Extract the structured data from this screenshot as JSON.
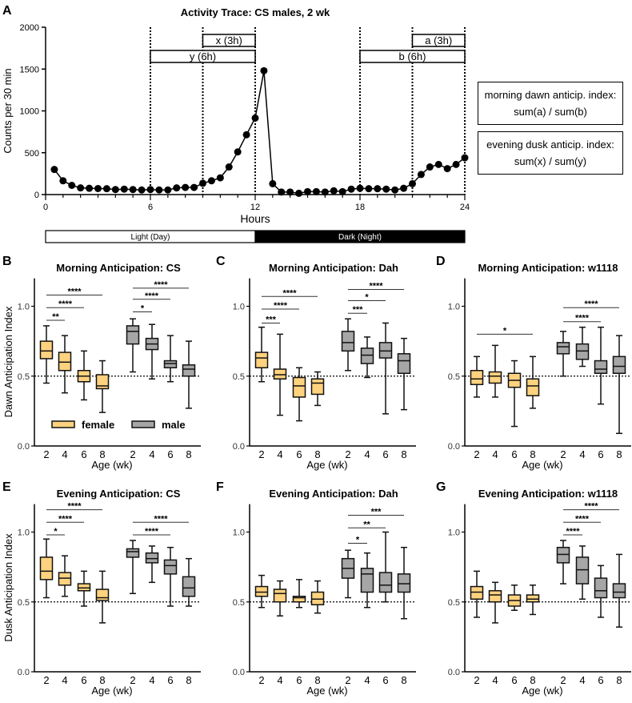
{
  "colors": {
    "female": "#FFD27F",
    "male": "#A6A6A6",
    "line": "#000000",
    "dark_phase": "#000000",
    "light_phase": "#FFFFFF"
  },
  "index_boxes": [
    {
      "line1": "morning dawn anticip. index:",
      "line2": "sum(a) / sum(b)"
    },
    {
      "line1": "evening dusk anticip. index:",
      "line2": "sum(x) / sum(y)"
    }
  ],
  "chart_data": [
    {
      "panel": "A",
      "type": "line",
      "title": "Activity Trace: CS males, 2 wk",
      "xlabel": "Hours",
      "ylabel": "Counts per 30 min",
      "xlim": [
        0,
        24
      ],
      "ylim": [
        0,
        2000
      ],
      "xticks": [
        0,
        6,
        12,
        18,
        24
      ],
      "yticks": [
        0,
        500,
        1000,
        1500,
        2000
      ],
      "x": [
        0.5,
        1,
        1.5,
        2,
        2.5,
        3,
        3.5,
        4,
        4.5,
        5,
        5.5,
        6,
        6.5,
        7,
        7.5,
        8,
        8.5,
        9,
        9.5,
        10,
        10.5,
        11,
        11.5,
        12,
        12.5,
        13,
        13.5,
        14,
        14.5,
        15,
        15.5,
        16,
        16.5,
        17,
        17.5,
        18,
        18.5,
        19,
        19.5,
        20,
        20.5,
        21,
        21.5,
        22,
        22.5,
        23,
        23.5,
        24
      ],
      "y": [
        300,
        165,
        110,
        80,
        75,
        72,
        70,
        60,
        65,
        60,
        55,
        60,
        55,
        55,
        80,
        85,
        85,
        135,
        165,
        200,
        330,
        510,
        715,
        915,
        1480,
        130,
        30,
        30,
        15,
        35,
        35,
        30,
        45,
        35,
        65,
        75,
        70,
        70,
        65,
        55,
        75,
        130,
        240,
        330,
        360,
        310,
        360,
        440
      ],
      "dotted_lines": [
        6,
        9,
        12,
        18,
        21,
        24
      ],
      "intervals": [
        {
          "label": "x (3h)",
          "start": 9,
          "end": 12,
          "row": 1
        },
        {
          "label": "y (6h)",
          "start": 6,
          "end": 12,
          "row": 2
        },
        {
          "label": "a (3h)",
          "start": 21,
          "end": 24,
          "row": 1
        },
        {
          "label": "b (6h)",
          "start": 18,
          "end": 24,
          "row": 2
        }
      ],
      "phase_bar": [
        {
          "label": "Light (Day)",
          "start": 0,
          "end": 12,
          "phase": "light"
        },
        {
          "label": "Dark (Night)",
          "start": 12,
          "end": 24,
          "phase": "dark"
        }
      ]
    },
    {
      "panel": "B",
      "type": "box",
      "title": "Morning Anticipation: CS",
      "ylabel": "Dawn Anticipation Index",
      "xlabel": "Age (wk)",
      "ylim": [
        0,
        1.2
      ],
      "yticks": [
        "0.0",
        "0.5",
        "1.0"
      ],
      "reference_line": 0.5,
      "categories": [
        "2",
        "4",
        "6",
        "8"
      ],
      "legend": [
        {
          "name": "female"
        },
        {
          "name": "male"
        }
      ],
      "groups": [
        {
          "name": "female",
          "boxes": [
            [
              0.45,
              0.625,
              0.68,
              0.75,
              0.86
            ],
            [
              0.38,
              0.54,
              0.6,
              0.67,
              0.79
            ],
            [
              0.33,
              0.46,
              0.5,
              0.54,
              0.68
            ],
            [
              0.24,
              0.41,
              0.43,
              0.51,
              0.61
            ]
          ]
        },
        {
          "name": "male",
          "boxes": [
            [
              0.53,
              0.73,
              0.82,
              0.86,
              0.91
            ],
            [
              0.48,
              0.69,
              0.73,
              0.77,
              0.87
            ],
            [
              0.46,
              0.56,
              0.59,
              0.61,
              0.79
            ],
            [
              0.27,
              0.5,
              0.55,
              0.58,
              0.75
            ]
          ]
        }
      ],
      "significance": [
        {
          "group": 0,
          "from": 0,
          "to": 1,
          "label": "**",
          "y": 0.9
        },
        {
          "group": 0,
          "from": 0,
          "to": 2,
          "label": "****",
          "y": 0.99
        },
        {
          "group": 0,
          "from": 0,
          "to": 3,
          "label": "****",
          "y": 1.08
        },
        {
          "group": 1,
          "from": 0,
          "to": 1,
          "label": "*",
          "y": 0.96
        },
        {
          "group": 1,
          "from": 0,
          "to": 2,
          "label": "****",
          "y": 1.05
        },
        {
          "group": 1,
          "from": 0,
          "to": 3,
          "label": "****",
          "y": 1.13
        }
      ]
    },
    {
      "panel": "C",
      "type": "box",
      "title": "Morning Anticipation: Dah",
      "ylabel": "",
      "xlabel": "Age (wk)",
      "ylim": [
        0,
        1.2
      ],
      "yticks": [
        "0.0",
        "0.5",
        "1.0"
      ],
      "reference_line": 0.5,
      "categories": [
        "2",
        "4",
        "6",
        "8"
      ],
      "groups": [
        {
          "name": "female",
          "boxes": [
            [
              0.46,
              0.56,
              0.63,
              0.67,
              0.85
            ],
            [
              0.22,
              0.48,
              0.51,
              0.55,
              0.8
            ],
            [
              0.18,
              0.35,
              0.43,
              0.49,
              0.56
            ],
            [
              0.29,
              0.37,
              0.45,
              0.48,
              0.53
            ]
          ]
        },
        {
          "name": "male",
          "boxes": [
            [
              0.54,
              0.68,
              0.74,
              0.82,
              0.91
            ],
            [
              0.49,
              0.59,
              0.65,
              0.7,
              0.78
            ],
            [
              0.23,
              0.63,
              0.68,
              0.74,
              0.88
            ],
            [
              0.26,
              0.52,
              0.61,
              0.66,
              0.77
            ]
          ]
        }
      ],
      "significance": [
        {
          "group": 0,
          "from": 0,
          "to": 1,
          "label": "***",
          "y": 0.88
        },
        {
          "group": 0,
          "from": 0,
          "to": 2,
          "label": "****",
          "y": 0.98
        },
        {
          "group": 0,
          "from": 0,
          "to": 3,
          "label": "****",
          "y": 1.07
        },
        {
          "group": 1,
          "from": 0,
          "to": 1,
          "label": "***",
          "y": 0.95
        },
        {
          "group": 1,
          "from": 0,
          "to": 2,
          "label": "*",
          "y": 1.04
        },
        {
          "group": 1,
          "from": 0,
          "to": 3,
          "label": "****",
          "y": 1.12
        }
      ]
    },
    {
      "panel": "D",
      "type": "box",
      "title": "Morning Anticipation: w1118",
      "ylabel": "",
      "xlabel": "Age (wk)",
      "ylim": [
        0,
        1.2
      ],
      "yticks": [
        "0.0",
        "0.5",
        "1.0"
      ],
      "reference_line": 0.5,
      "categories": [
        "2",
        "4",
        "6",
        "8"
      ],
      "groups": [
        {
          "name": "female",
          "boxes": [
            [
              0.35,
              0.44,
              0.48,
              0.54,
              0.64
            ],
            [
              0.35,
              0.45,
              0.5,
              0.53,
              0.72
            ],
            [
              0.14,
              0.42,
              0.47,
              0.52,
              0.61
            ],
            [
              0.27,
              0.36,
              0.43,
              0.48,
              0.64
            ]
          ]
        },
        {
          "name": "male",
          "boxes": [
            [
              0.5,
              0.66,
              0.71,
              0.74,
              0.82
            ],
            [
              0.57,
              0.62,
              0.68,
              0.73,
              0.85
            ],
            [
              0.3,
              0.52,
              0.55,
              0.61,
              0.85
            ],
            [
              0.09,
              0.52,
              0.57,
              0.64,
              0.79
            ]
          ]
        }
      ],
      "significance": [
        {
          "group": 0,
          "from": 0,
          "to": 3,
          "label": "*",
          "y": 0.8
        },
        {
          "group": 1,
          "from": 0,
          "to": 2,
          "label": "****",
          "y": 0.89
        },
        {
          "group": 1,
          "from": 0,
          "to": 3,
          "label": "****",
          "y": 0.99
        }
      ]
    },
    {
      "panel": "E",
      "type": "box",
      "title": "Evening Anticipation: CS",
      "ylabel": "Dusk Anticipation Index",
      "xlabel": "Age (wk)",
      "ylim": [
        0,
        1.2
      ],
      "yticks": [
        "0.0",
        "0.5",
        "1.0"
      ],
      "reference_line": 0.5,
      "categories": [
        "2",
        "4",
        "6",
        "8"
      ],
      "groups": [
        {
          "name": "female",
          "boxes": [
            [
              0.53,
              0.66,
              0.72,
              0.82,
              0.95
            ],
            [
              0.54,
              0.62,
              0.67,
              0.71,
              0.83
            ],
            [
              0.47,
              0.58,
              0.6,
              0.63,
              0.72
            ],
            [
              0.35,
              0.51,
              0.53,
              0.59,
              0.72
            ]
          ]
        },
        {
          "name": "male",
          "boxes": [
            [
              0.56,
              0.82,
              0.86,
              0.88,
              0.94
            ],
            [
              0.64,
              0.78,
              0.81,
              0.85,
              0.9
            ],
            [
              0.47,
              0.7,
              0.76,
              0.8,
              0.89
            ],
            [
              0.47,
              0.54,
              0.6,
              0.68,
              0.81
            ]
          ]
        }
      ],
      "significance": [
        {
          "group": 0,
          "from": 0,
          "to": 1,
          "label": "*",
          "y": 0.98
        },
        {
          "group": 0,
          "from": 0,
          "to": 2,
          "label": "****",
          "y": 1.07
        },
        {
          "group": 0,
          "from": 0,
          "to": 3,
          "label": "****",
          "y": 1.16
        },
        {
          "group": 1,
          "from": 0,
          "to": 2,
          "label": "****",
          "y": 0.98
        },
        {
          "group": 1,
          "from": 0,
          "to": 3,
          "label": "****",
          "y": 1.07
        }
      ]
    },
    {
      "panel": "F",
      "type": "box",
      "title": "Evening Anticipation: Dah",
      "ylabel": "",
      "xlabel": "Age (wk)",
      "ylim": [
        0,
        1.2
      ],
      "yticks": [
        "0.0",
        "0.5",
        "1.0"
      ],
      "reference_line": 0.5,
      "categories": [
        "2",
        "4",
        "6",
        "8"
      ],
      "groups": [
        {
          "name": "female",
          "boxes": [
            [
              0.46,
              0.54,
              0.57,
              0.61,
              0.69
            ],
            [
              0.4,
              0.5,
              0.56,
              0.59,
              0.65
            ],
            [
              0.46,
              0.5,
              0.53,
              0.54,
              0.66
            ],
            [
              0.42,
              0.48,
              0.52,
              0.57,
              0.65
            ]
          ]
        },
        {
          "name": "male",
          "boxes": [
            [
              0.53,
              0.67,
              0.74,
              0.81,
              0.87
            ],
            [
              0.46,
              0.57,
              0.7,
              0.74,
              0.85
            ],
            [
              0.5,
              0.57,
              0.62,
              0.71,
              1.0
            ],
            [
              0.38,
              0.57,
              0.63,
              0.7,
              0.89
            ]
          ]
        }
      ],
      "significance": [
        {
          "group": 1,
          "from": 0,
          "to": 1,
          "label": "*",
          "y": 0.92
        },
        {
          "group": 1,
          "from": 0,
          "to": 2,
          "label": "**",
          "y": 1.03
        },
        {
          "group": 1,
          "from": 0,
          "to": 3,
          "label": "***",
          "y": 1.12
        }
      ]
    },
    {
      "panel": "G",
      "type": "box",
      "title": "Evening Anticipation: w1118",
      "ylabel": "",
      "xlabel": "Age (wk)",
      "ylim": [
        0,
        1.2
      ],
      "yticks": [
        "0.0",
        "0.5",
        "1.0"
      ],
      "reference_line": 0.5,
      "categories": [
        "2",
        "4",
        "6",
        "8"
      ],
      "groups": [
        {
          "name": "female",
          "boxes": [
            [
              0.39,
              0.52,
              0.57,
              0.61,
              0.72
            ],
            [
              0.35,
              0.5,
              0.55,
              0.58,
              0.64
            ],
            [
              0.44,
              0.47,
              0.51,
              0.55,
              0.62
            ],
            [
              0.41,
              0.5,
              0.52,
              0.55,
              0.62
            ]
          ]
        },
        {
          "name": "male",
          "boxes": [
            [
              0.63,
              0.78,
              0.84,
              0.89,
              0.94
            ],
            [
              0.52,
              0.63,
              0.73,
              0.82,
              0.9
            ],
            [
              0.39,
              0.53,
              0.58,
              0.67,
              0.76
            ],
            [
              0.32,
              0.53,
              0.57,
              0.63,
              0.84
            ]
          ]
        }
      ],
      "significance": [
        {
          "group": 1,
          "from": 0,
          "to": 1,
          "label": "****",
          "y": 0.98
        },
        {
          "group": 1,
          "from": 0,
          "to": 2,
          "label": "****",
          "y": 1.07
        },
        {
          "group": 1,
          "from": 0,
          "to": 3,
          "label": "****",
          "y": 1.16
        }
      ]
    }
  ]
}
